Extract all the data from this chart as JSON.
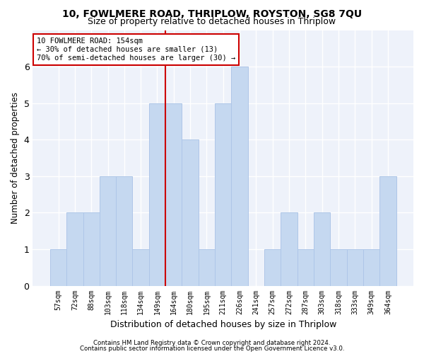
{
  "title1": "10, FOWLMERE ROAD, THRIPLOW, ROYSTON, SG8 7QU",
  "title2": "Size of property relative to detached houses in Thriplow",
  "xlabel": "Distribution of detached houses by size in Thriplow",
  "ylabel": "Number of detached properties",
  "bins": [
    "57sqm",
    "72sqm",
    "88sqm",
    "103sqm",
    "118sqm",
    "134sqm",
    "149sqm",
    "164sqm",
    "180sqm",
    "195sqm",
    "211sqm",
    "226sqm",
    "241sqm",
    "257sqm",
    "272sqm",
    "287sqm",
    "303sqm",
    "318sqm",
    "333sqm",
    "349sqm",
    "364sqm"
  ],
  "values": [
    1,
    2,
    2,
    3,
    3,
    1,
    5,
    5,
    4,
    1,
    5,
    6,
    0,
    1,
    2,
    1,
    2,
    1,
    1,
    1,
    3
  ],
  "bar_color": "#c5d8f0",
  "bar_edge_color": "#aec6e8",
  "vline_bin_index": 6.5,
  "vline_color": "#cc0000",
  "annotation_line1": "10 FOWLMERE ROAD: 154sqm",
  "annotation_line2": "← 30% of detached houses are smaller (13)",
  "annotation_line3": "70% of semi-detached houses are larger (30) →",
  "annotation_box_color": "#ffffff",
  "annotation_box_edge_color": "#cc0000",
  "footer1": "Contains HM Land Registry data © Crown copyright and database right 2024.",
  "footer2": "Contains public sector information licensed under the Open Government Licence v3.0.",
  "ylim": [
    0,
    7
  ],
  "yticks": [
    0,
    1,
    2,
    3,
    4,
    5,
    6
  ],
  "bg_color": "#eef2fa",
  "grid_color": "#ffffff",
  "title1_fontsize": 10,
  "title2_fontsize": 9
}
